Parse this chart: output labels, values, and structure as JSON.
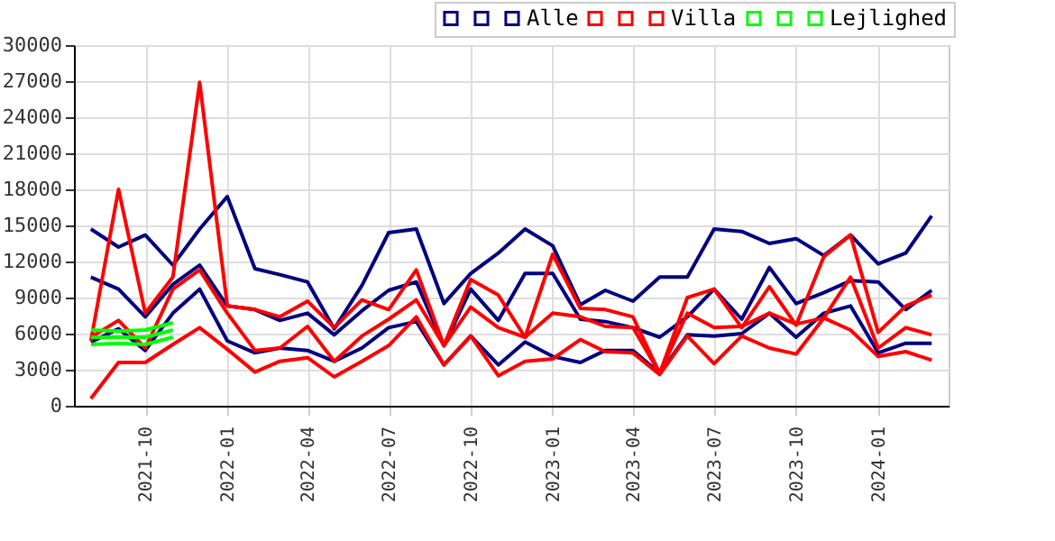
{
  "chart_data": {
    "type": "line",
    "x": [
      "2021-08",
      "2021-09",
      "2021-10",
      "2021-11",
      "2021-12",
      "2022-01",
      "2022-02",
      "2022-03",
      "2022-04",
      "2022-05",
      "2022-06",
      "2022-07",
      "2022-08",
      "2022-09",
      "2022-10",
      "2022-11",
      "2022-12",
      "2023-01",
      "2023-02",
      "2023-03",
      "2023-04",
      "2023-05",
      "2023-06",
      "2023-07",
      "2023-08",
      "2023-09",
      "2023-10",
      "2023-11",
      "2023-12",
      "2024-01",
      "2024-02",
      "2024-03"
    ],
    "series": [
      {
        "color": "#000080",
        "values": [
          14700,
          13200,
          14200,
          11700,
          14700,
          17400,
          11400,
          10900,
          10300,
          6400,
          10000,
          14400,
          14700,
          8500,
          11000,
          12700,
          14700,
          13300,
          8400,
          9600,
          8700,
          10700,
          10700,
          14700,
          14500,
          13500,
          13900,
          12500,
          14200,
          11800,
          12700,
          15800
        ]
      },
      {
        "color": "#000080",
        "values": [
          10700,
          9700,
          7400,
          10100,
          11700,
          8300,
          8000,
          7100,
          7700,
          5900,
          7900,
          9600,
          10300,
          5000,
          9700,
          7100,
          11000,
          11000,
          7200,
          7000,
          6500,
          5700,
          7400,
          9700,
          7200,
          11500,
          8500,
          9400,
          10400,
          10300,
          8000,
          9600
        ]
      },
      {
        "name": "Alle",
        "color": "#000080",
        "values": [
          5300,
          6400,
          4600,
          7700,
          9700,
          5400,
          4400,
          4800,
          4600,
          3700,
          4800,
          6500,
          7000,
          3400,
          5800,
          3400,
          5300,
          4100,
          3600,
          4600,
          4600,
          2700,
          5900,
          5800,
          6000,
          7700,
          5700,
          7700,
          8300,
          4400,
          5200,
          5200
        ]
      },
      {
        "color": "#ff0000",
        "values": [
          5400,
          18000,
          7700,
          10700,
          26900,
          8300,
          8000,
          7400,
          8700,
          6500,
          8800,
          8000,
          11300,
          5000,
          10500,
          9200,
          5700,
          12600,
          8100,
          8000,
          7400,
          2700,
          9000,
          9700,
          6500,
          9900,
          6700,
          12400,
          14200,
          6100,
          8300,
          9200
        ]
      },
      {
        "color": "#ff0000",
        "values": [
          5700,
          7100,
          4800,
          9700,
          11300,
          7700,
          4600,
          4800,
          6600,
          3700,
          5800,
          7200,
          8800,
          5000,
          8200,
          6500,
          5700,
          7700,
          7400,
          6600,
          6500,
          2700,
          7700,
          6500,
          6600,
          7700,
          6800,
          7300,
          10700,
          4800,
          6500,
          5900
        ]
      },
      {
        "name": "Villa",
        "color": "#ff0000",
        "values": [
          600,
          3600,
          3600,
          5100,
          6500,
          4700,
          2800,
          3700,
          4000,
          2400,
          3700,
          5000,
          7400,
          3400,
          5800,
          2500,
          3700,
          3900,
          5500,
          4500,
          4400,
          2600,
          5800,
          3500,
          5800,
          4800,
          4300,
          7300,
          6300,
          4100,
          4500,
          3800
        ]
      },
      {
        "color": "#00ff00",
        "values": [
          5100,
          5200,
          5100,
          5700,
          null,
          null,
          null,
          null,
          null,
          null,
          null,
          null,
          null,
          null,
          null,
          null,
          null,
          null,
          null,
          null,
          null,
          null,
          null,
          null,
          null,
          null,
          null,
          null,
          null,
          null,
          null,
          null
        ]
      },
      {
        "color": "#00ff00",
        "values": [
          5700,
          5700,
          5700,
          6300,
          null,
          null,
          null,
          null,
          null,
          null,
          null,
          null,
          null,
          null,
          null,
          null,
          null,
          null,
          null,
          null,
          null,
          null,
          null,
          null,
          null,
          null,
          null,
          null,
          null,
          null,
          null,
          null
        ]
      },
      {
        "name": "Lejlighed",
        "color": "#00ff00",
        "values": [
          6300,
          6200,
          6300,
          6900,
          null,
          null,
          null,
          null,
          null,
          null,
          null,
          null,
          null,
          null,
          null,
          null,
          null,
          null,
          null,
          null,
          null,
          null,
          null,
          null,
          null,
          null,
          null,
          null,
          null,
          null,
          null,
          null
        ]
      }
    ],
    "xlim": [
      "2021-07-13",
      "2024-03-20"
    ],
    "xticks": [
      "2021-10",
      "2022-01",
      "2022-04",
      "2022-07",
      "2022-10",
      "2023-01",
      "2023-04",
      "2023-07",
      "2023-10",
      "2024-01"
    ],
    "ylim": [
      0,
      30000
    ],
    "yticks": [
      0,
      3000,
      6000,
      9000,
      12000,
      15000,
      18000,
      21000,
      24000,
      27000,
      30000
    ],
    "grid": true,
    "legend": "top right",
    "line_style": "solid",
    "marker": "none"
  }
}
